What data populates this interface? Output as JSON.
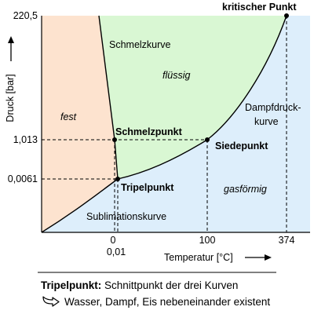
{
  "colors": {
    "solid": "#fde3cf",
    "liquid": "#d9f7d3",
    "gas": "#ddeefb",
    "line": "#000000"
  },
  "y_axis": {
    "label": "Druck [bar]",
    "ticks": [
      "220,5",
      "1,013",
      "0,0061"
    ]
  },
  "x_axis": {
    "label": "Temperatur [°C]",
    "ticks": [
      "0",
      "0,01",
      "100",
      "374"
    ]
  },
  "regions": {
    "solid": "fest",
    "liquid": "flüssig",
    "gas": "gasförmig"
  },
  "curves": {
    "melting": "Schmelzkurve",
    "vapor_line1": "Dampfdruck-",
    "vapor_line2": "kurve",
    "sublimation": "Sublimationskurve"
  },
  "points": {
    "critical": "kritischer Punkt",
    "melting": "Schmelzpunkt",
    "boiling": "Siedepunkt",
    "triple": "Tripelpunkt"
  },
  "notes": {
    "triple_label": "Tripelpunkt:",
    "triple_text": "Schnittpunkt der drei Kurven",
    "consequence": "Wasser, Dampf, Eis nebeneinander existent",
    "consequence_icon": "curved-arrow-icon"
  }
}
